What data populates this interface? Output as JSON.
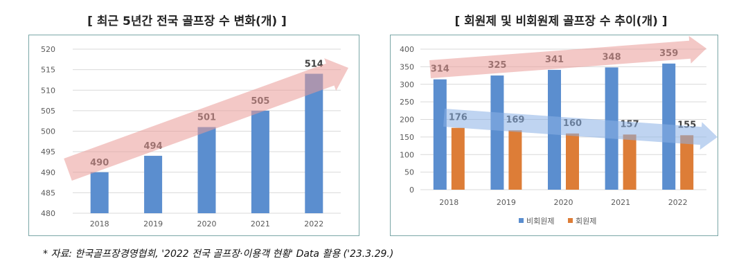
{
  "left_title": "[ 최근 5년간 전국 골프장 수 변화(개) ]",
  "right_title": "[ 회원제 및 비회원제 골프장 수 추이(개) ]",
  "source": "* 자료: 한국골프장경영협회, '2022 전국 골프장·이용객 현황' Data 활용 ('23.3.29.)",
  "colors": {
    "blue": "#5b8ecf",
    "orange": "#dd7d37",
    "arrow_red": "#e99a98",
    "arrow_blue": "#8ab0e6",
    "frame": "#7aa6a6"
  },
  "chart_data": [
    {
      "type": "bar",
      "categories": [
        "2018",
        "2019",
        "2020",
        "2021",
        "2022"
      ],
      "values": [
        490,
        494,
        501,
        505,
        514
      ],
      "ylim": [
        480,
        520
      ],
      "yticks": [
        480,
        485,
        490,
        495,
        500,
        505,
        510,
        515,
        520
      ],
      "title": "[ 최근 5년간 전국 골프장 수 변화(개) ]",
      "grid": "horizontal"
    },
    {
      "type": "bar",
      "categories": [
        "2018",
        "2019",
        "2020",
        "2021",
        "2022"
      ],
      "series": [
        {
          "name": "비회원제",
          "values": [
            314,
            325,
            341,
            348,
            359
          ]
        },
        {
          "name": "회원제",
          "values": [
            176,
            169,
            160,
            157,
            155
          ]
        }
      ],
      "ylim": [
        0,
        400
      ],
      "yticks": [
        0,
        50,
        100,
        150,
        200,
        250,
        300,
        350,
        400
      ],
      "title": "[ 회원제 및 비회원제 골프장 수 추이(개) ]",
      "legend": "bottom",
      "grid": "horizontal"
    }
  ]
}
